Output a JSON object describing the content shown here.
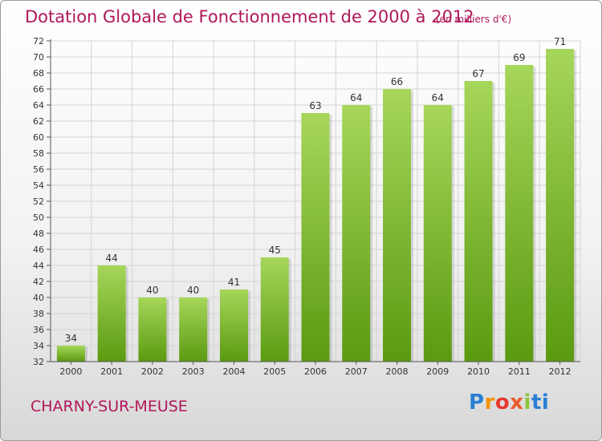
{
  "header": {
    "title": "Dotation Globale de Fonctionnement de 2000 à 2012",
    "unit": "(en milliers d'€)"
  },
  "footer": {
    "commune": "CHARNY-SUR-MEUSE",
    "logo_letters": [
      "P",
      "r",
      "o",
      "x",
      "i",
      "ti"
    ]
  },
  "colors": {
    "title": "#b0175a",
    "bar_light": "#a6d65a",
    "bar_dark": "#5a9a10"
  },
  "chart_data": {
    "type": "bar",
    "title": "Dotation Globale de Fonctionnement de 2000 à 2012",
    "xlabel": "",
    "ylabel": "",
    "categories": [
      "2000",
      "2001",
      "2002",
      "2003",
      "2004",
      "2005",
      "2006",
      "2007",
      "2008",
      "2009",
      "2010",
      "2011",
      "2012"
    ],
    "values": [
      34,
      44,
      40,
      40,
      41,
      45,
      63,
      64,
      66,
      64,
      67,
      69,
      71
    ],
    "ylim": [
      32,
      72
    ],
    "yticks": [
      32,
      34,
      36,
      38,
      40,
      42,
      44,
      46,
      48,
      50,
      52,
      54,
      56,
      58,
      60,
      62,
      64,
      66,
      68,
      70,
      72
    ],
    "grid": true,
    "legend": "none"
  }
}
